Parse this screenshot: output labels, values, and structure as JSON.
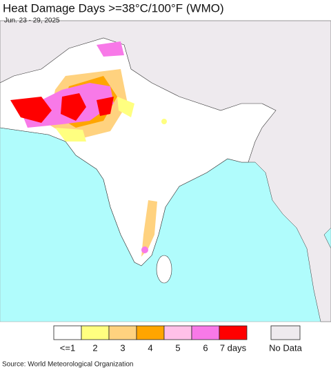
{
  "title": "Heat Damage Days >=38°C/100°F (WMO)",
  "subtitle": "Jun. 23 - 29, 2025",
  "legend": {
    "items": [
      {
        "label": "<=1",
        "color": "#ffffff"
      },
      {
        "label": "2",
        "color": "#ffff80"
      },
      {
        "label": "3",
        "color": "#ffd27f"
      },
      {
        "label": "4",
        "color": "#ffa500"
      },
      {
        "label": "5",
        "color": "#ffc0e8"
      },
      {
        "label": "6",
        "color": "#f879e8"
      },
      {
        "label": "7 days",
        "color": "#ff0000"
      }
    ],
    "no_data": {
      "label": "No Data",
      "color": "#eeeaee"
    }
  },
  "source": "Source: World Meteorological Organization"
}
